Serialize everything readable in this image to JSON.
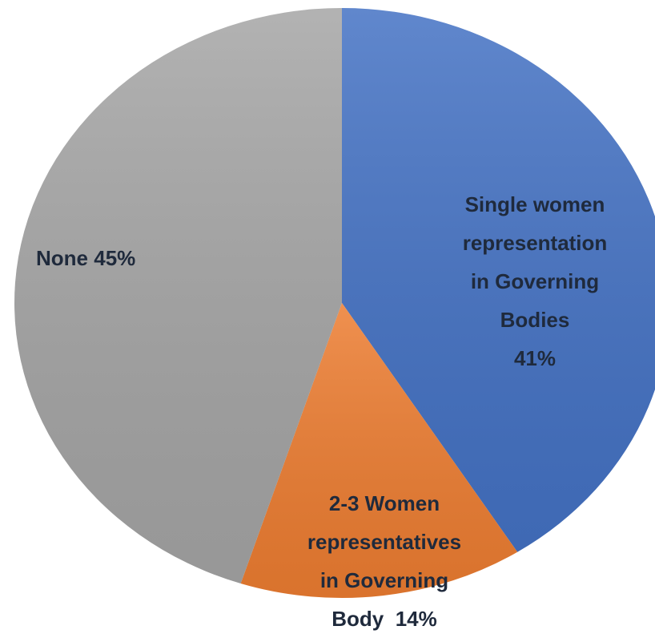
{
  "chart_data": {
    "type": "pie",
    "categories": [
      "Single women\nrepresentation\nin Governing\nBodies",
      "2-3 Women\nrepresentatives\nin Governing\nBody",
      "None"
    ],
    "values": [
      41,
      14,
      45
    ],
    "value_labels": [
      "41%",
      "14%",
      "45%"
    ],
    "colors": [
      "#4472c4",
      "#ed7d31",
      "#a5a5a5"
    ]
  }
}
